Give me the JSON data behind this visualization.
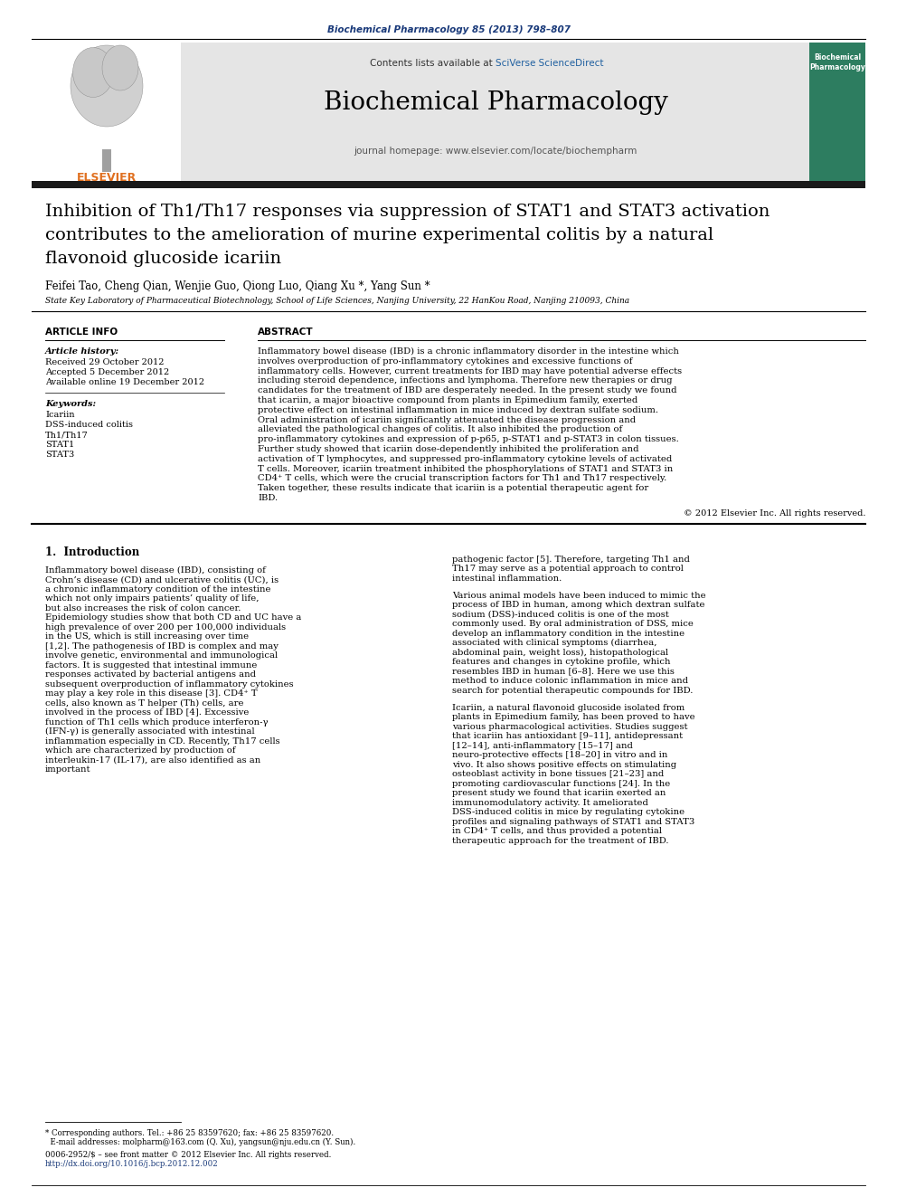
{
  "journal_header_text": "Biochemical Pharmacology 85 (2013) 798–807",
  "contents_text_plain": "Contents lists available at ",
  "contents_text_link": "SciVerse ScienceDirect",
  "journal_name": "Biochemical Pharmacology",
  "journal_homepage": "journal homepage: www.elsevier.com/locate/biochempharm",
  "title_line1": "Inhibition of Th1/Th17 responses via suppression of STAT1 and STAT3 activation",
  "title_line2": "contributes to the amelioration of murine experimental colitis by a natural",
  "title_line3": "flavonoid glucoside icariin",
  "authors": "Feifei Tao, Cheng Qian, Wenjie Guo, Qiong Luo, Qiang Xu *, Yang Sun *",
  "affiliation": "State Key Laboratory of Pharmaceutical Biotechnology, School of Life Sciences, Nanjing University, 22 HanKou Road, Nanjing 210093, China",
  "article_info_header": "ARTICLE INFO",
  "abstract_header": "ABSTRACT",
  "article_history_label": "Article history:",
  "received": "Received 29 October 2012",
  "accepted": "Accepted 5 December 2012",
  "available": "Available online 19 December 2012",
  "keywords_label": "Keywords:",
  "keywords": [
    "Icariin",
    "DSS-induced colitis",
    "Th1/Th17",
    "STAT1",
    "STAT3"
  ],
  "abstract_text": "Inflammatory bowel disease (IBD) is a chronic inflammatory disorder in the intestine which involves overproduction of pro-inflammatory cytokines and excessive functions of inflammatory cells. However, current treatments for IBD may have potential adverse effects including steroid dependence, infections and lymphoma. Therefore new therapies or drug candidates for the treatment of IBD are desperately needed. In the present study we found that icariin, a major bioactive compound from plants in Epimedium family, exerted protective effect on intestinal inflammation in mice induced by dextran sulfate sodium. Oral administration of icariin significantly attenuated the disease progression and alleviated the pathological changes of colitis. It also inhibited the production of pro-inflammatory cytokines and expression of p-p65, p-STAT1 and p-STAT3 in colon tissues. Further study showed that icariin dose-dependently inhibited the proliferation and activation of T lymphocytes, and suppressed pro-inflammatory cytokine levels of activated T cells. Moreover, icariin treatment inhibited the phosphorylations of STAT1 and STAT3 in CD4⁺ T cells, which were the crucial transcription factors for Th1 and Th17 respectively. Taken together, these results indicate that icariin is a potential therapeutic agent for IBD.",
  "copyright": "© 2012 Elsevier Inc. All rights reserved.",
  "intro_header": "1.  Introduction",
  "intro_col1": "    Inflammatory bowel disease (IBD), consisting of Crohn’s disease (CD) and ulcerative colitis (UC), is a chronic inflammatory condition of the intestine which not only impairs patients’ quality of life, but also increases the risk of colon cancer. Epidemiology studies show that both CD and UC have a high prevalence of over 200 per 100,000 individuals in the US, which is still increasing over time [1,2]. The pathogenesis of IBD is complex and may involve genetic, environmental and immunological factors. It is suggested that intestinal immune responses activated by bacterial antigens and subsequent overproduction of inflammatory cytokines may play a key role in this disease [3]. CD4⁺ T cells, also known as T helper (Th) cells, are involved in the process of IBD [4]. Excessive function of Th1 cells which produce interferon-γ (IFN-γ) is generally associated with intestinal inflammation especially in CD. Recently, Th17 cells which are characterized by production of interleukin-17 (IL-17), are also identified as an important",
  "intro_col2_p1": "pathogenic factor [5]. Therefore, targeting Th1 and Th17 may serve as a potential approach to control intestinal inflammation.",
  "intro_col2_p2": "    Various animal models have been induced to mimic the process of IBD in human, among which dextran sulfate sodium (DSS)-induced colitis is one of the most commonly used. By oral administration of DSS, mice develop an inflammatory condition in the intestine associated with clinical symptoms (diarrhea, abdominal pain, weight loss), histopathological features and changes in cytokine profile, which resembles IBD in human [6–8]. Here we use this method to induce colonic inflammation in mice and search for potential therapeutic compounds for IBD.",
  "intro_col2_p3": "    Icariin, a natural flavonoid glucoside isolated from plants in Epimedium family, has been proved to have various pharmacological activities. Studies suggest that icariin has antioxidant [9–11], antidepressant [12–14], anti-inflammatory [15–17] and neuro-protective effects [18–20] in vitro and in vivo. It also shows positive effects on stimulating osteoblast activity in bone tissues [21–23] and promoting cardiovascular functions [24]. In the present study we found that icariin exerted an immunomodulatory activity. It ameliorated DSS-induced colitis in mice by regulating cytokine profiles and signaling pathways of STAT1 and STAT3 in CD4⁺ T cells, and thus provided a potential therapeutic approach for the treatment of IBD.",
  "footnote1": "* Corresponding authors. Tel.: +86 25 83597620; fax: +86 25 83597620.",
  "footnote2": "  E-mail addresses: molpharm@163.com (Q. Xu), yangsun@nju.edu.cn (Y. Sun).",
  "footnote3": "0006-2952/$ – see front matter © 2012 Elsevier Inc. All rights reserved.",
  "footnote4": "http://dx.doi.org/10.1016/j.bcp.2012.12.002",
  "bg_color": "#ffffff",
  "header_bg": "#e2e2e2",
  "dark_bar_color": "#1a1a1a",
  "link_color": "#1a3a7a",
  "sciverse_color": "#2060a0",
  "elsevier_color": "#e07020",
  "cover_bg": "#2d7d60",
  "abstract_line_chars": 90,
  "intro_line_chars": 52
}
